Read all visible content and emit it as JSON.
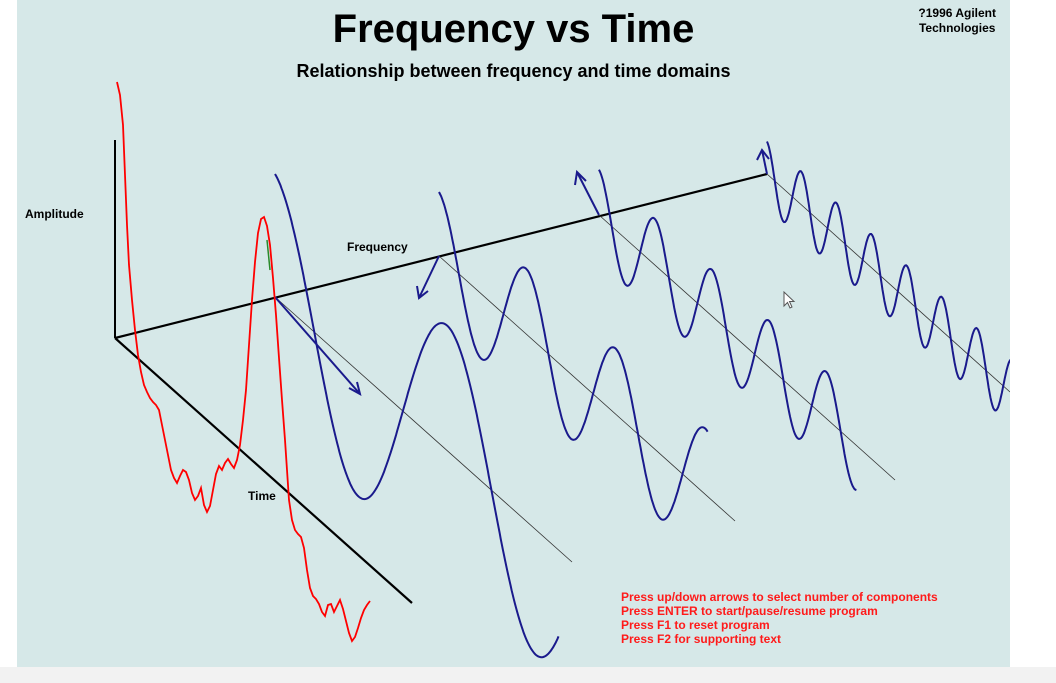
{
  "header": {
    "title": "Frequency vs Time",
    "subtitle": "Relationship between frequency and time domains",
    "copyright_line1": "?1996 Agilent",
    "copyright_line2": "Technologies"
  },
  "axes": {
    "amplitude": "Amplitude",
    "frequency": "Frequency",
    "time": "Time"
  },
  "instructions": [
    "Press up/down arrows to select number of components",
    "Press ENTER to start/pause/resume program",
    "Press F1 to reset program",
    "Press F2 for supporting text"
  ],
  "colors": {
    "background": "#d6e8e8",
    "composite_wave": "#ff0000",
    "component_waves": "#1a1a8c",
    "axes": "#000000",
    "instructions": "#ff1a1a"
  }
}
